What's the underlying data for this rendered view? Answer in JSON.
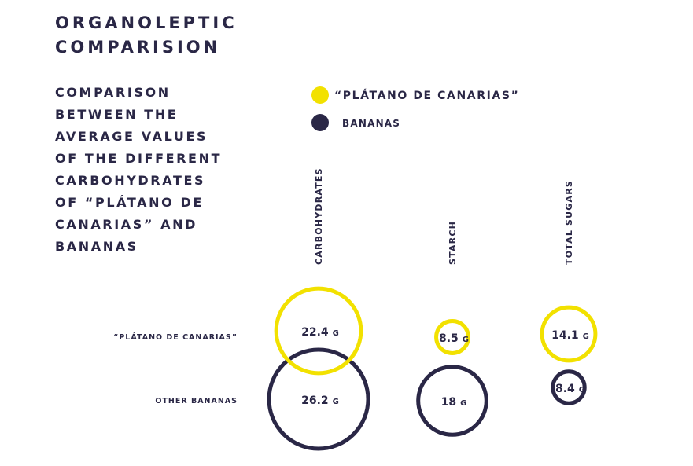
{
  "title": {
    "line1": "ORGANOLEPTIC",
    "line2": "COMPARISION"
  },
  "subtitle": {
    "lines": [
      "COMPARISON",
      "BETWEEN THE",
      "AVERAGE VALUES",
      "OF THE DIFFERENT",
      "CARBOHYDRATES",
      "OF “PLÁTANO DE",
      "CANARIAS” AND",
      "BANANAS"
    ]
  },
  "colors": {
    "yellow": "#f2e100",
    "navy": "#2a2746"
  },
  "chart_data": {
    "type": "bubble",
    "title": "ORGANOLEPTIC COMPARISION",
    "unit": "G",
    "legend": [
      {
        "label": "“PLÁTANO DE CANARIAS”",
        "color": "#f2e100"
      },
      {
        "label": "BANANAS",
        "color": "#2a2746"
      }
    ],
    "categories": [
      "CARBOHYDRATES",
      "STARCH",
      "TOTAL SUGARS"
    ],
    "series": [
      {
        "name": "“PLÁTANO DE CANARIAS”",
        "color": "#f2e100",
        "values": [
          22.4,
          8.5,
          14.1
        ],
        "labels": [
          "22.4",
          "8.5",
          "14.1"
        ]
      },
      {
        "name": "OTHER BANANAS",
        "color": "#2a2746",
        "values": [
          26.2,
          18,
          8.4
        ],
        "labels": [
          "26.2",
          "18",
          "8.4"
        ]
      }
    ]
  }
}
